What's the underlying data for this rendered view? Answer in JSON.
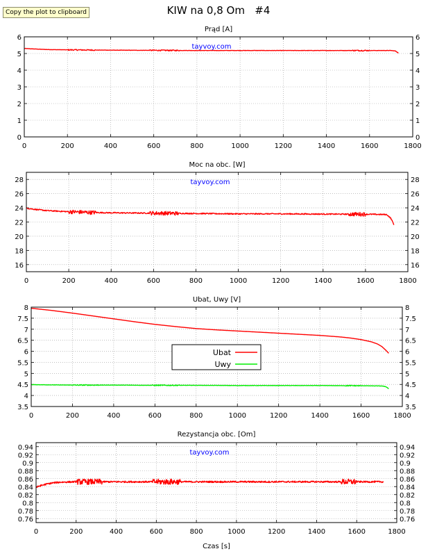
{
  "page": {
    "title": "KIW na 0,8 Om   #4",
    "copy_button": "Copy the plot to clipboard",
    "watermark": "tayvoy.com",
    "xlabel": "Czas [s]"
  },
  "colors": {
    "red": "#ff0000",
    "green": "#00ee00",
    "grid": "#999999",
    "watermark": "#0000ff"
  },
  "chart_data": [
    {
      "type": "line",
      "title": "Prąd [A]",
      "xlim": [
        0,
        1800
      ],
      "ylim": [
        0,
        6
      ],
      "xticks": [
        0,
        200,
        400,
        600,
        800,
        1000,
        1200,
        1400,
        1600,
        1800
      ],
      "yticks": [
        "0",
        "1",
        "2",
        "3",
        "4",
        "5",
        "6"
      ],
      "grid": true,
      "watermark": true,
      "series": [
        {
          "color": "red",
          "noise": 0.01,
          "x": [
            0,
            50,
            100,
            200,
            400,
            600,
            800,
            1000,
            1200,
            1400,
            1600,
            1700,
            1720,
            1735
          ],
          "y": [
            5.3,
            5.27,
            5.24,
            5.22,
            5.2,
            5.19,
            5.18,
            5.18,
            5.18,
            5.18,
            5.18,
            5.18,
            5.15,
            5.02
          ]
        }
      ]
    },
    {
      "type": "line",
      "title": "Moc na obc. [W]",
      "xlim": [
        0,
        1800
      ],
      "ylim": [
        15,
        29
      ],
      "xticks": [
        0,
        200,
        400,
        600,
        800,
        1000,
        1200,
        1400,
        1600,
        1800
      ],
      "yticks": [
        "16",
        "18",
        "20",
        "22",
        "24",
        "26",
        "28"
      ],
      "grid": true,
      "watermark": true,
      "series": [
        {
          "color": "red",
          "noise": 0.08,
          "x": [
            0,
            50,
            100,
            200,
            300,
            400,
            600,
            800,
            1000,
            1200,
            1400,
            1600,
            1700,
            1710,
            1720,
            1735
          ],
          "y": [
            23.95,
            23.75,
            23.6,
            23.45,
            23.35,
            23.3,
            23.25,
            23.2,
            23.15,
            23.15,
            23.12,
            23.1,
            23.05,
            22.8,
            22.5,
            21.6
          ]
        }
      ]
    },
    {
      "type": "line",
      "title": "Ubat, Uwy [V]",
      "xlim": [
        0,
        1800
      ],
      "ylim": [
        3.5,
        8
      ],
      "xticks": [
        0,
        200,
        400,
        600,
        800,
        1000,
        1200,
        1400,
        1600,
        1800
      ],
      "yticks": [
        "3.5",
        "4",
        "4.5",
        "5",
        "5.5",
        "6",
        "6.5",
        "7",
        "7.5",
        "8"
      ],
      "grid": true,
      "watermark": false,
      "legend": "center",
      "series": [
        {
          "name": "Ubat",
          "color": "red",
          "noise": 0,
          "x": [
            0,
            100,
            200,
            300,
            400,
            500,
            600,
            700,
            800,
            900,
            1000,
            1100,
            1200,
            1300,
            1400,
            1500,
            1550,
            1600,
            1650,
            1680,
            1700,
            1720,
            1735
          ],
          "y": [
            7.95,
            7.85,
            7.73,
            7.6,
            7.47,
            7.34,
            7.22,
            7.12,
            7.03,
            6.97,
            6.92,
            6.87,
            6.82,
            6.77,
            6.72,
            6.65,
            6.6,
            6.53,
            6.43,
            6.33,
            6.22,
            6.05,
            5.9
          ]
        },
        {
          "name": "Uwy",
          "color": "green",
          "noise": 0.006,
          "x": [
            0,
            100,
            200,
            400,
            600,
            800,
            1000,
            1200,
            1400,
            1600,
            1700,
            1720,
            1735
          ],
          "y": [
            4.49,
            4.48,
            4.47,
            4.47,
            4.46,
            4.46,
            4.45,
            4.45,
            4.45,
            4.44,
            4.43,
            4.4,
            4.3
          ]
        }
      ]
    },
    {
      "type": "line",
      "title": "Rezystancja obc. [Om]",
      "xlim": [
        0,
        1800
      ],
      "ylim": [
        0.75,
        0.95
      ],
      "xticks": [
        0,
        200,
        400,
        600,
        800,
        1000,
        1200,
        1400,
        1600,
        1800
      ],
      "yticks": [
        "0.76",
        "0.78",
        "0.8",
        "0.82",
        "0.84",
        "0.86",
        "0.88",
        "0.9",
        "0.92",
        "0.94"
      ],
      "grid": true,
      "watermark": true,
      "series": [
        {
          "color": "red",
          "noise": 0.002,
          "x": [
            0,
            20,
            50,
            80,
            120,
            200,
            400,
            800,
            1200,
            1600,
            1735
          ],
          "y": [
            0.838,
            0.842,
            0.846,
            0.849,
            0.851,
            0.852,
            0.852,
            0.852,
            0.852,
            0.852,
            0.852
          ]
        }
      ]
    }
  ]
}
